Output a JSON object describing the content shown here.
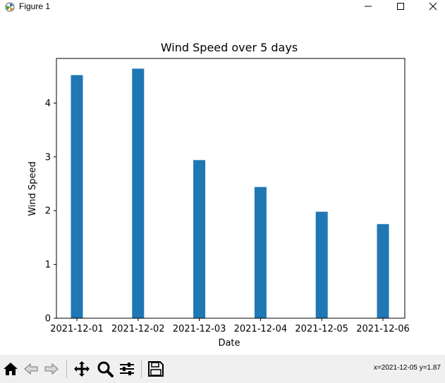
{
  "window": {
    "title": "Figure 1",
    "icons": [
      "matplotlib-icon",
      "minimize-icon",
      "maximize-icon",
      "close-icon"
    ]
  },
  "chart_data": {
    "type": "bar",
    "title": "Wind Speed over 5 days",
    "xlabel": "Date",
    "ylabel": "Wind Speed",
    "categories": [
      "2021-12-01",
      "2021-12-02",
      "2021-12-03",
      "2021-12-04",
      "2021-12-05",
      "2021-12-06"
    ],
    "values": [
      4.52,
      4.64,
      2.94,
      2.44,
      1.98,
      1.75
    ],
    "ylim": [
      0,
      4.83
    ],
    "yticks": [
      0,
      1,
      2,
      3,
      4
    ],
    "color": "#1f77b4",
    "grid": false,
    "legend": null
  },
  "toolbar": {
    "buttons": [
      "home-icon",
      "back-icon",
      "forward-icon",
      "pan-icon",
      "zoom-icon",
      "configure-subplots-icon",
      "save-icon"
    ],
    "coords": "x=2021-12-05 y=1.87"
  }
}
